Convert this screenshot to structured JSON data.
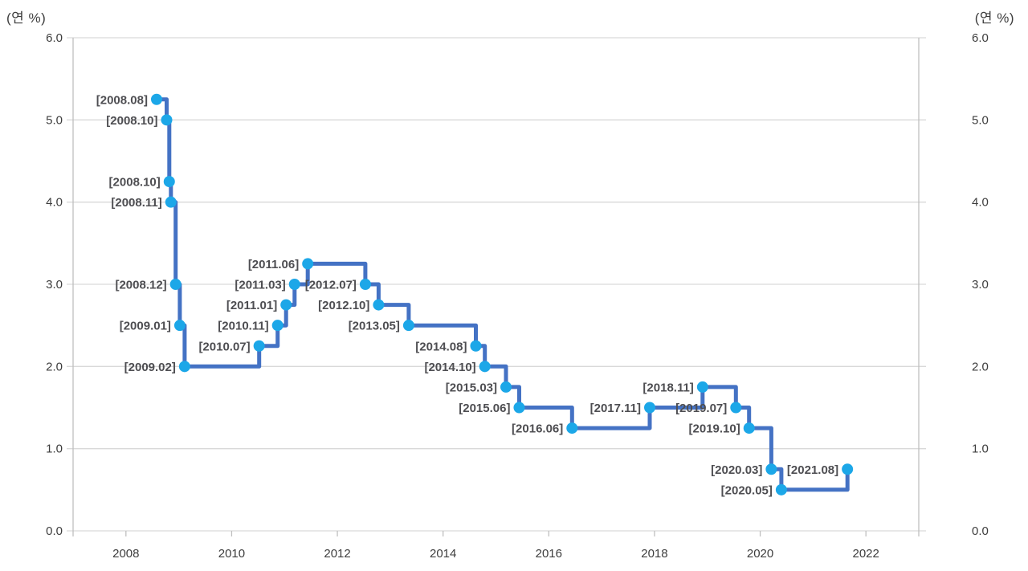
{
  "chart_data": {
    "type": "line",
    "style": "step-after",
    "unit_left": "(연 %)",
    "unit_right": "(연 %)",
    "xlim": [
      2007,
      2023
    ],
    "ylim": [
      0.0,
      6.0
    ],
    "grid": "horizontal",
    "legend": "none",
    "x_ticks": [
      {
        "value": 2008,
        "label": "2008"
      },
      {
        "value": 2010,
        "label": "2010"
      },
      {
        "value": 2012,
        "label": "2012"
      },
      {
        "value": 2014,
        "label": "2014"
      },
      {
        "value": 2016,
        "label": "2016"
      },
      {
        "value": 2018,
        "label": "2018"
      },
      {
        "value": 2020,
        "label": "2020"
      },
      {
        "value": 2022,
        "label": "2022"
      }
    ],
    "y_ticks": [
      {
        "value": 0,
        "label": "0.0"
      },
      {
        "value": 1,
        "label": "1.0"
      },
      {
        "value": 2,
        "label": "2.0"
      },
      {
        "value": 3,
        "label": "3.0"
      },
      {
        "value": 4,
        "label": "4.0"
      },
      {
        "value": 5,
        "label": "5.0"
      },
      {
        "value": 6,
        "label": "6.0"
      }
    ],
    "colors": {
      "line": "#4472C4",
      "marker": "#1CA7E8",
      "grid": "#D9D9D9",
      "axis": "#BFBFBF",
      "tick_label": "#3d3d3d",
      "point_label": "#4e4e52"
    },
    "series": [
      {
        "points": [
          {
            "label": "[2008.08]",
            "x": 2008.58,
            "y": 5.25
          },
          {
            "label": "[2008.10]",
            "x": 2008.77,
            "y": 5.0
          },
          {
            "label": "[2008.10]",
            "x": 2008.82,
            "y": 4.25
          },
          {
            "label": "[2008.11]",
            "x": 2008.85,
            "y": 4.0
          },
          {
            "label": "[2008.12]",
            "x": 2008.94,
            "y": 3.0
          },
          {
            "label": "[2009.01]",
            "x": 2009.02,
            "y": 2.5
          },
          {
            "label": "[2009.02]",
            "x": 2009.11,
            "y": 2.0
          },
          {
            "label": "[2010.07]",
            "x": 2010.52,
            "y": 2.25
          },
          {
            "label": "[2010.11]",
            "x": 2010.87,
            "y": 2.5
          },
          {
            "label": "[2011.01]",
            "x": 2011.03,
            "y": 2.75
          },
          {
            "label": "[2011.03]",
            "x": 2011.19,
            "y": 3.0
          },
          {
            "label": "[2011.06]",
            "x": 2011.44,
            "y": 3.25
          },
          {
            "label": "[2012.07]",
            "x": 2012.53,
            "y": 3.0
          },
          {
            "label": "[2012.10]",
            "x": 2012.78,
            "y": 2.75
          },
          {
            "label": "[2013.05]",
            "x": 2013.35,
            "y": 2.5
          },
          {
            "label": "[2014.08]",
            "x": 2014.62,
            "y": 2.25
          },
          {
            "label": "[2014.10]",
            "x": 2014.79,
            "y": 2.0
          },
          {
            "label": "[2015.03]",
            "x": 2015.19,
            "y": 1.75
          },
          {
            "label": "[2015.06]",
            "x": 2015.44,
            "y": 1.5
          },
          {
            "label": "[2016.06]",
            "x": 2016.44,
            "y": 1.25
          },
          {
            "label": "[2017.11]",
            "x": 2017.91,
            "y": 1.5
          },
          {
            "label": "[2018.11]",
            "x": 2018.91,
            "y": 1.75
          },
          {
            "label": "[2019.07]",
            "x": 2019.54,
            "y": 1.5
          },
          {
            "label": "[2019.10]",
            "x": 2019.79,
            "y": 1.25
          },
          {
            "label": "[2020.03]",
            "x": 2020.21,
            "y": 0.75
          },
          {
            "label": "[2020.05]",
            "x": 2020.4,
            "y": 0.5
          },
          {
            "label": "[2021.08]",
            "x": 2021.65,
            "y": 0.75
          }
        ]
      }
    ]
  }
}
